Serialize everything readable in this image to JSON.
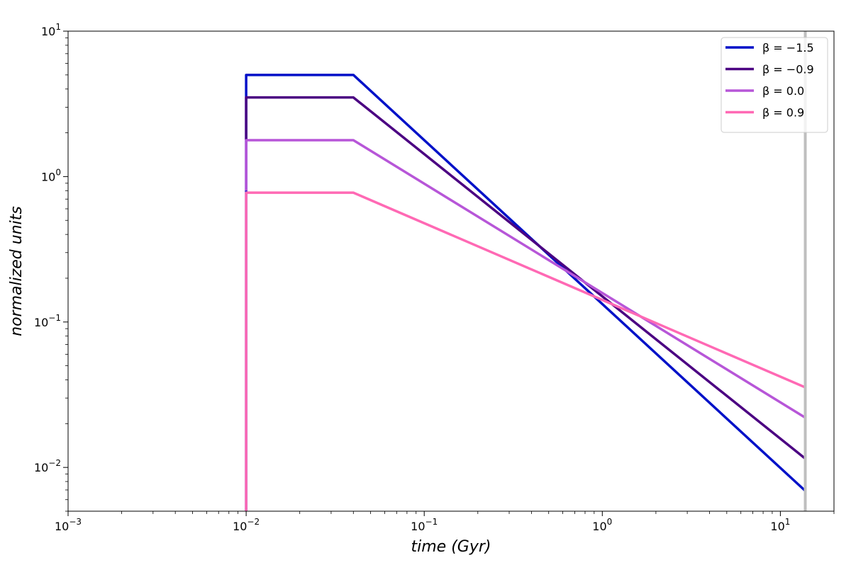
{
  "chart_data": {
    "type": "line",
    "title": "",
    "xlabel": "time (Gyr)",
    "ylabel": "normalized units",
    "xscale": "log",
    "yscale": "log",
    "xlim": [
      0.001,
      20
    ],
    "ylim": [
      0.005,
      10
    ],
    "x_ticks": [
      {
        "value": 0.001,
        "base": "10",
        "exp": "−3"
      },
      {
        "value": 0.01,
        "base": "10",
        "exp": "−2"
      },
      {
        "value": 0.1,
        "base": "10",
        "exp": "−1"
      },
      {
        "value": 1,
        "base": "10",
        "exp": "0"
      },
      {
        "value": 10,
        "base": "10",
        "exp": "1"
      }
    ],
    "y_ticks": [
      {
        "value": 0.01,
        "base": "10",
        "exp": "−2"
      },
      {
        "value": 0.1,
        "base": "10",
        "exp": "−1"
      },
      {
        "value": 1,
        "base": "10",
        "exp": "0"
      },
      {
        "value": 10,
        "base": "10",
        "exp": "1"
      }
    ],
    "grid": false,
    "legend_position": "top-right",
    "vertical_marker": {
      "x": 13.8,
      "color": "#bfbfbf"
    },
    "series": [
      {
        "name": "β = −1.5",
        "color": "#0011c8",
        "x": [
          0.01,
          0.01,
          0.04,
          13.8
        ],
        "y": [
          0.005,
          5.0,
          5.0,
          0.0069
        ]
      },
      {
        "name": "β = −0.9",
        "color": "#4b0082",
        "x": [
          0.01,
          0.01,
          0.04,
          13.8
        ],
        "y": [
          1.8,
          3.5,
          3.5,
          0.0115
        ]
      },
      {
        "name": "β = 0.0",
        "color": "#b756d8",
        "x": [
          0.01,
          0.01,
          0.04,
          13.8
        ],
        "y": [
          0.8,
          1.78,
          1.78,
          0.022
        ]
      },
      {
        "name": "β = 0.9",
        "color": "#ff69b4",
        "x": [
          0.01,
          0.01,
          0.04,
          13.8
        ],
        "y": [
          0.005,
          0.775,
          0.775,
          0.0355
        ]
      }
    ]
  }
}
